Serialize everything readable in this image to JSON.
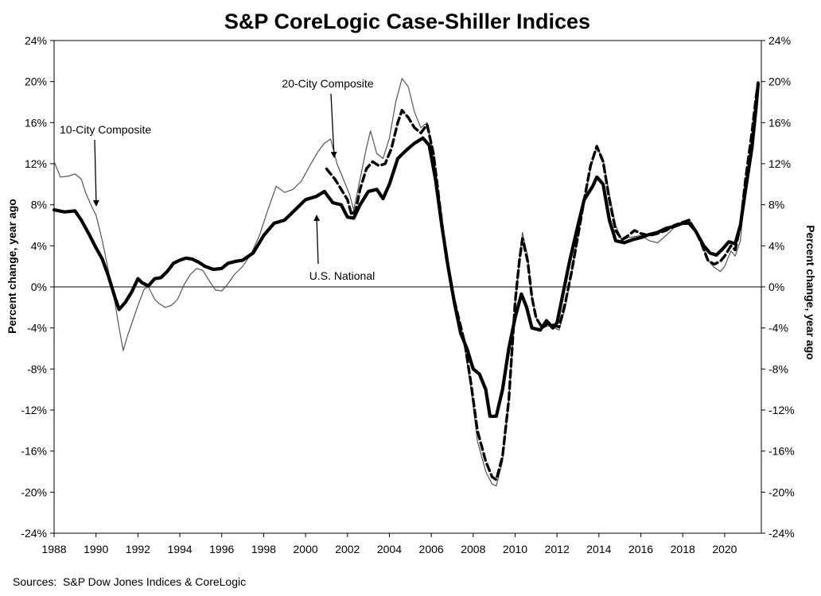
{
  "chart_data": {
    "type": "line",
    "title": "S&P CoreLogic Case-Shiller Indices",
    "ylabel_left": "Percent change, year ago",
    "ylabel_right": "Percent change, year ago",
    "source": "Sources:  S&P Dow Jones Indices & CoreLogic",
    "xlim": [
      1988,
      2021.75
    ],
    "ylim": [
      -24,
      24
    ],
    "x_ticks": [
      1988,
      1990,
      1992,
      1994,
      1996,
      1998,
      2000,
      2002,
      2004,
      2006,
      2008,
      2010,
      2012,
      2014,
      2016,
      2018,
      2020
    ],
    "y_ticks": [
      -24,
      -20,
      -16,
      -12,
      -8,
      -4,
      0,
      4,
      8,
      12,
      16,
      20,
      24
    ],
    "y_tick_labels": [
      "-24%",
      "-20%",
      "-16%",
      "-12%",
      "-8%",
      "-4%",
      "0%",
      "4%",
      "8%",
      "12%",
      "16%",
      "20%",
      "24%"
    ],
    "grid": false,
    "legend": "none",
    "zero_line": true,
    "annotations": [
      {
        "text": "10-City Composite",
        "series": "10-City Composite"
      },
      {
        "text": "20-City Composite",
        "series": "20-City Composite"
      },
      {
        "text": "U.S. National",
        "series": "U.S. National"
      }
    ],
    "series": [
      {
        "name": "10-City Composite",
        "style": "thin",
        "color": "#555555",
        "points": [
          [
            1988,
            12.2
          ],
          [
            1988.3,
            10.7
          ],
          [
            1988.7,
            10.8
          ],
          [
            1989,
            11.0
          ],
          [
            1989.3,
            10.5
          ],
          [
            1989.5,
            9.2
          ],
          [
            1989.8,
            7.8
          ],
          [
            1990,
            7.0
          ],
          [
            1990.3,
            4.5
          ],
          [
            1990.6,
            1.5
          ],
          [
            1990.9,
            -1.5
          ],
          [
            1991.1,
            -4.0
          ],
          [
            1991.3,
            -6.2
          ],
          [
            1991.5,
            -4.8
          ],
          [
            1991.8,
            -3.0
          ],
          [
            1992,
            -1.8
          ],
          [
            1992.3,
            -0.2
          ],
          [
            1992.5,
            0.0
          ],
          [
            1992.8,
            -1.2
          ],
          [
            1993,
            -1.6
          ],
          [
            1993.3,
            -2.0
          ],
          [
            1993.6,
            -1.8
          ],
          [
            1993.9,
            -1.2
          ],
          [
            1994.2,
            0.2
          ],
          [
            1994.5,
            1.2
          ],
          [
            1994.8,
            1.8
          ],
          [
            1995.1,
            1.6
          ],
          [
            1995.4,
            0.6
          ],
          [
            1995.7,
            -0.3
          ],
          [
            1996,
            -0.4
          ],
          [
            1996.3,
            0.3
          ],
          [
            1996.6,
            1.2
          ],
          [
            1997,
            2.0
          ],
          [
            1997.4,
            3.2
          ],
          [
            1997.8,
            5.0
          ],
          [
            1998.2,
            7.5
          ],
          [
            1998.6,
            9.8
          ],
          [
            1999,
            9.2
          ],
          [
            1999.4,
            9.5
          ],
          [
            1999.8,
            10.3
          ],
          [
            2000.2,
            11.8
          ],
          [
            2000.6,
            13.2
          ],
          [
            2000.9,
            14.0
          ],
          [
            2001.2,
            14.4
          ],
          [
            2001.5,
            12.0
          ],
          [
            2001.8,
            10.5
          ],
          [
            2002.1,
            9.0
          ],
          [
            2002.3,
            7.5
          ],
          [
            2002.6,
            10.5
          ],
          [
            2002.9,
            13.5
          ],
          [
            2003.1,
            15.2
          ],
          [
            2003.4,
            13.0
          ],
          [
            2003.7,
            12.5
          ],
          [
            2004,
            14.5
          ],
          [
            2004.3,
            18.0
          ],
          [
            2004.6,
            20.3
          ],
          [
            2004.9,
            19.5
          ],
          [
            2005.2,
            17.0
          ],
          [
            2005.5,
            15.5
          ],
          [
            2005.8,
            16.0
          ],
          [
            2006.1,
            13.0
          ],
          [
            2006.4,
            7.5
          ],
          [
            2006.7,
            3.0
          ],
          [
            2007,
            -1.0
          ],
          [
            2007.3,
            -3.5
          ],
          [
            2007.6,
            -6.0
          ],
          [
            2007.9,
            -10.0
          ],
          [
            2008.2,
            -15.0
          ],
          [
            2008.6,
            -18.0
          ],
          [
            2008.9,
            -19.2
          ],
          [
            2009.1,
            -19.4
          ],
          [
            2009.4,
            -17.0
          ],
          [
            2009.7,
            -11.0
          ],
          [
            2010,
            -2.0
          ],
          [
            2010.2,
            2.5
          ],
          [
            2010.35,
            5.3
          ],
          [
            2010.6,
            3.0
          ],
          [
            2010.8,
            -1.0
          ],
          [
            2011,
            -3.0
          ],
          [
            2011.3,
            -4.0
          ],
          [
            2011.6,
            -3.8
          ],
          [
            2011.9,
            -4.0
          ],
          [
            2012.1,
            -4.2
          ],
          [
            2012.4,
            -2.0
          ],
          [
            2012.7,
            1.5
          ],
          [
            2013,
            5.0
          ],
          [
            2013.3,
            8.5
          ],
          [
            2013.6,
            11.5
          ],
          [
            2013.9,
            13.6
          ],
          [
            2014.2,
            12.5
          ],
          [
            2014.5,
            9.0
          ],
          [
            2014.8,
            6.0
          ],
          [
            2015.1,
            4.5
          ],
          [
            2015.4,
            4.8
          ],
          [
            2015.7,
            4.9
          ],
          [
            2016,
            5.0
          ],
          [
            2016.4,
            4.5
          ],
          [
            2016.8,
            4.3
          ],
          [
            2017.2,
            5.0
          ],
          [
            2017.6,
            5.8
          ],
          [
            2018,
            6.3
          ],
          [
            2018.3,
            6.6
          ],
          [
            2018.6,
            5.6
          ],
          [
            2018.9,
            4.5
          ],
          [
            2019.2,
            2.6
          ],
          [
            2019.5,
            1.9
          ],
          [
            2019.8,
            1.5
          ],
          [
            2020,
            2.0
          ],
          [
            2020.3,
            3.5
          ],
          [
            2020.5,
            3.0
          ],
          [
            2020.75,
            4.5
          ],
          [
            2021,
            10.0
          ],
          [
            2021.3,
            14.5
          ],
          [
            2021.5,
            18.5
          ],
          [
            2021.6,
            19.8
          ]
        ]
      },
      {
        "name": "20-City Composite",
        "style": "dashed",
        "color": "#000000",
        "points": [
          [
            2001,
            11.5
          ],
          [
            2001.2,
            11.0
          ],
          [
            2001.4,
            10.5
          ],
          [
            2001.7,
            9.5
          ],
          [
            2002,
            8.5
          ],
          [
            2002.2,
            7.0
          ],
          [
            2002.4,
            7.5
          ],
          [
            2002.6,
            9.5
          ],
          [
            2002.9,
            11.5
          ],
          [
            2003.2,
            12.2
          ],
          [
            2003.5,
            11.8
          ],
          [
            2003.8,
            12.0
          ],
          [
            2004.1,
            13.5
          ],
          [
            2004.4,
            16.0
          ],
          [
            2004.6,
            17.2
          ],
          [
            2004.9,
            16.5
          ],
          [
            2005.2,
            15.5
          ],
          [
            2005.5,
            15.0
          ],
          [
            2005.8,
            15.8
          ],
          [
            2006.1,
            13.0
          ],
          [
            2006.4,
            8.0
          ],
          [
            2006.7,
            3.0
          ],
          [
            2007,
            -0.5
          ],
          [
            2007.3,
            -3.0
          ],
          [
            2007.6,
            -5.5
          ],
          [
            2007.9,
            -9.5
          ],
          [
            2008.2,
            -14.0
          ],
          [
            2008.6,
            -17.0
          ],
          [
            2008.9,
            -18.5
          ],
          [
            2009.1,
            -18.8
          ],
          [
            2009.4,
            -16.5
          ],
          [
            2009.7,
            -11.0
          ],
          [
            2010,
            -1.5
          ],
          [
            2010.2,
            2.5
          ],
          [
            2010.35,
            4.7
          ],
          [
            2010.6,
            2.5
          ],
          [
            2010.8,
            -1.0
          ],
          [
            2011,
            -3.0
          ],
          [
            2011.3,
            -4.0
          ],
          [
            2011.6,
            -3.5
          ],
          [
            2011.9,
            -3.8
          ],
          [
            2012.1,
            -3.9
          ],
          [
            2012.4,
            -1.5
          ],
          [
            2012.7,
            1.5
          ],
          [
            2013,
            5.0
          ],
          [
            2013.3,
            8.5
          ],
          [
            2013.6,
            11.8
          ],
          [
            2013.9,
            13.7
          ],
          [
            2014.2,
            12.2
          ],
          [
            2014.5,
            8.5
          ],
          [
            2014.8,
            5.5
          ],
          [
            2015.1,
            4.6
          ],
          [
            2015.4,
            5.0
          ],
          [
            2015.7,
            5.5
          ],
          [
            2016,
            5.2
          ],
          [
            2016.4,
            5.0
          ],
          [
            2016.8,
            5.2
          ],
          [
            2017.2,
            5.5
          ],
          [
            2017.6,
            6.0
          ],
          [
            2018,
            6.3
          ],
          [
            2018.3,
            6.5
          ],
          [
            2018.6,
            5.5
          ],
          [
            2018.9,
            4.2
          ],
          [
            2019.2,
            2.6
          ],
          [
            2019.5,
            2.2
          ],
          [
            2019.8,
            2.5
          ],
          [
            2020,
            3.0
          ],
          [
            2020.3,
            4.0
          ],
          [
            2020.5,
            3.6
          ],
          [
            2020.75,
            6.0
          ],
          [
            2021,
            10.5
          ],
          [
            2021.3,
            15.0
          ],
          [
            2021.5,
            18.5
          ],
          [
            2021.6,
            19.9
          ]
        ]
      },
      {
        "name": "U.S. National",
        "style": "thick",
        "color": "#000000",
        "points": [
          [
            1988,
            7.5
          ],
          [
            1988.5,
            7.3
          ],
          [
            1989,
            7.4
          ],
          [
            1989.3,
            6.5
          ],
          [
            1989.7,
            5.0
          ],
          [
            1990,
            3.8
          ],
          [
            1990.3,
            2.7
          ],
          [
            1990.6,
            1.0
          ],
          [
            1990.9,
            -1.0
          ],
          [
            1991.1,
            -2.2
          ],
          [
            1991.4,
            -1.5
          ],
          [
            1991.7,
            -0.5
          ],
          [
            1992,
            0.8
          ],
          [
            1992.2,
            0.4
          ],
          [
            1992.5,
            0.1
          ],
          [
            1992.8,
            0.8
          ],
          [
            1993.1,
            0.9
          ],
          [
            1993.4,
            1.5
          ],
          [
            1993.7,
            2.3
          ],
          [
            1994,
            2.6
          ],
          [
            1994.3,
            2.8
          ],
          [
            1994.6,
            2.7
          ],
          [
            1994.9,
            2.4
          ],
          [
            1995.2,
            2.0
          ],
          [
            1995.6,
            1.7
          ],
          [
            1996,
            1.8
          ],
          [
            1996.3,
            2.3
          ],
          [
            1996.7,
            2.5
          ],
          [
            1997,
            2.6
          ],
          [
            1997.5,
            3.3
          ],
          [
            1998,
            5.0
          ],
          [
            1998.5,
            6.2
          ],
          [
            1999,
            6.5
          ],
          [
            1999.5,
            7.5
          ],
          [
            2000,
            8.5
          ],
          [
            2000.5,
            8.8
          ],
          [
            2000.9,
            9.3
          ],
          [
            2001.3,
            8.2
          ],
          [
            2001.7,
            8.0
          ],
          [
            2002,
            6.8
          ],
          [
            2002.3,
            6.7
          ],
          [
            2002.6,
            8.0
          ],
          [
            2003,
            9.3
          ],
          [
            2003.4,
            9.5
          ],
          [
            2003.7,
            8.6
          ],
          [
            2004,
            10.0
          ],
          [
            2004.4,
            12.5
          ],
          [
            2004.8,
            13.3
          ],
          [
            2005.2,
            14.0
          ],
          [
            2005.6,
            14.5
          ],
          [
            2005.9,
            13.8
          ],
          [
            2006.2,
            10.5
          ],
          [
            2006.5,
            6.0
          ],
          [
            2006.8,
            2.0
          ],
          [
            2007.1,
            -1.5
          ],
          [
            2007.4,
            -4.5
          ],
          [
            2007.7,
            -6.0
          ],
          [
            2008,
            -8.0
          ],
          [
            2008.3,
            -8.5
          ],
          [
            2008.6,
            -10.0
          ],
          [
            2008.8,
            -12.6
          ],
          [
            2009.1,
            -12.6
          ],
          [
            2009.4,
            -10.0
          ],
          [
            2009.7,
            -6.0
          ],
          [
            2010,
            -3.0
          ],
          [
            2010.3,
            -0.7
          ],
          [
            2010.55,
            -2.0
          ],
          [
            2010.8,
            -4.0
          ],
          [
            2011.2,
            -4.2
          ],
          [
            2011.5,
            -3.3
          ],
          [
            2011.8,
            -4.0
          ],
          [
            2012,
            -3.5
          ],
          [
            2012.3,
            -0.5
          ],
          [
            2012.6,
            2.5
          ],
          [
            2013,
            6.0
          ],
          [
            2013.3,
            8.5
          ],
          [
            2013.7,
            9.8
          ],
          [
            2013.9,
            10.7
          ],
          [
            2014.2,
            10.0
          ],
          [
            2014.5,
            6.5
          ],
          [
            2014.8,
            4.5
          ],
          [
            2015.2,
            4.3
          ],
          [
            2015.6,
            4.6
          ],
          [
            2016,
            4.8
          ],
          [
            2016.4,
            5.1
          ],
          [
            2016.8,
            5.3
          ],
          [
            2017.2,
            5.7
          ],
          [
            2017.6,
            5.9
          ],
          [
            2018,
            6.2
          ],
          [
            2018.3,
            6.2
          ],
          [
            2018.6,
            5.5
          ],
          [
            2019,
            4.0
          ],
          [
            2019.3,
            3.3
          ],
          [
            2019.6,
            3.1
          ],
          [
            2019.9,
            3.7
          ],
          [
            2020.2,
            4.4
          ],
          [
            2020.5,
            4.2
          ],
          [
            2020.75,
            6.0
          ],
          [
            2021,
            9.5
          ],
          [
            2021.3,
            13.5
          ],
          [
            2021.5,
            17.5
          ],
          [
            2021.6,
            19.8
          ]
        ]
      }
    ]
  }
}
